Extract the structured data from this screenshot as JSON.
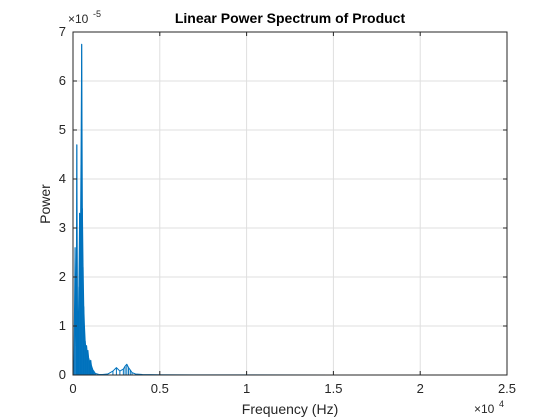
{
  "chart_data": {
    "type": "line",
    "title": "Linear Power Spectrum of Product",
    "xlabel": "Frequency (Hz)",
    "ylabel": "Power",
    "xlim": [
      0,
      25000
    ],
    "ylim": [
      0,
      7e-05
    ],
    "x_ticks": [
      0,
      5000,
      10000,
      15000,
      20000,
      25000
    ],
    "x_tick_labels": [
      "0",
      "0.5",
      "1",
      "1.5",
      "2",
      "2.5"
    ],
    "y_ticks": [
      0,
      1e-05,
      2e-05,
      3e-05,
      4e-05,
      5e-05,
      6e-05,
      7e-05
    ],
    "y_tick_labels": [
      "0",
      "1",
      "2",
      "3",
      "4",
      "5",
      "6",
      "7"
    ],
    "x_multiplier": {
      "base": "×10",
      "exponent": "4"
    },
    "y_multiplier": {
      "base": "×10",
      "exponent": "-5"
    },
    "grid": true,
    "series": [
      {
        "color": "#0072bd",
        "x": [
          0,
          60,
          120,
          180,
          220,
          260,
          300,
          340,
          380,
          420,
          460,
          500,
          540,
          580,
          620,
          660,
          700,
          740,
          780,
          820,
          860,
          900,
          940,
          980,
          1020,
          1060,
          1100,
          1150,
          1200,
          1250,
          1300,
          1400,
          1500,
          1700,
          2000,
          2300,
          2500,
          2700,
          2900,
          3000,
          3100,
          3200,
          3300,
          3400,
          3600,
          4000,
          5000,
          7000,
          10000,
          15000,
          20000,
          24000
        ],
        "y": [
          0,
          3e-06,
          2.6e-05,
          6e-06,
          4.7e-05,
          1.2e-05,
          9e-06,
          1.8e-05,
          3.3e-05,
          2.3e-05,
          4.3e-05,
          6.75e-05,
          3.4e-05,
          2.2e-05,
          1.4e-05,
          1e-05,
          7e-06,
          5.5e-06,
          6e-06,
          4.5e-06,
          5e-06,
          3.5e-06,
          3e-06,
          2.5e-06,
          3e-06,
          2e-06,
          1.5e-06,
          1e-06,
          8e-07,
          5e-07,
          3e-07,
          2e-07,
          1e-07,
          1e-07,
          2e-07,
          8e-07,
          1.5e-06,
          8e-07,
          1.2e-06,
          1.8e-06,
          2.2e-06,
          1.5e-06,
          1e-06,
          5e-07,
          2e-07,
          1e-07,
          5e-08,
          3e-08,
          2e-08,
          1e-08,
          1e-08,
          0
        ]
      }
    ]
  }
}
